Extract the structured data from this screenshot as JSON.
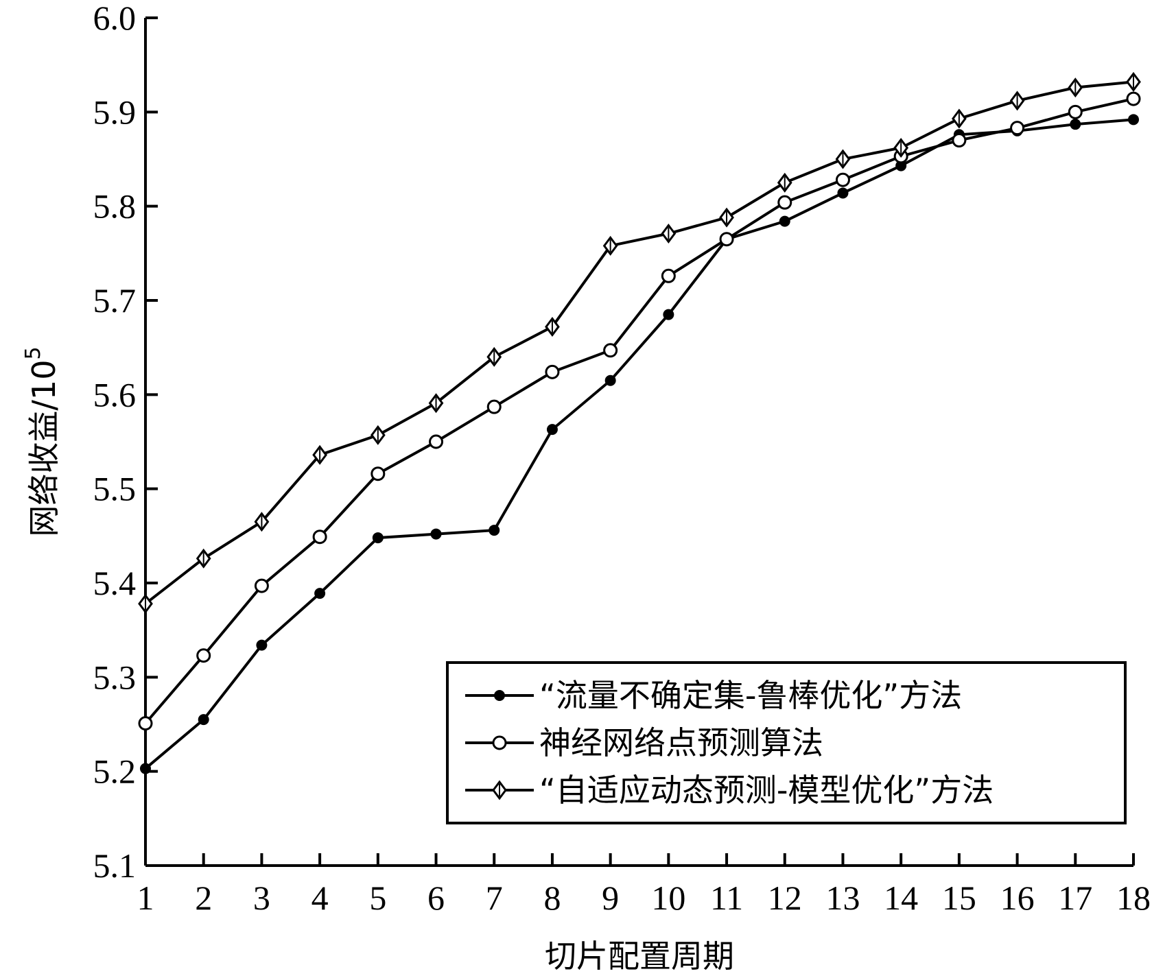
{
  "chart_data": {
    "type": "line",
    "xlabel": "切片配置周期",
    "ylabel": "网络收益/10",
    "ylabel_sup": "5",
    "x": [
      1,
      2,
      3,
      4,
      5,
      6,
      7,
      8,
      9,
      10,
      11,
      12,
      13,
      14,
      15,
      16,
      17,
      18
    ],
    "x_ticks": [
      "1",
      "2",
      "3",
      "4",
      "5",
      "6",
      "7",
      "8",
      "9",
      "10",
      "11",
      "12",
      "13",
      "14",
      "15",
      "16",
      "17",
      "18"
    ],
    "y_ticks": [
      "5.1",
      "5.2",
      "5.3",
      "5.4",
      "5.5",
      "5.6",
      "5.7",
      "5.8",
      "5.9",
      "6.0"
    ],
    "xlim": [
      1,
      18
    ],
    "ylim": [
      5.1,
      6.0
    ],
    "grid": false,
    "legend_position": "bottom-right",
    "series": [
      {
        "name": "“流量不确定集-鲁棒优化”方法",
        "marker": "filled-dot",
        "values": [
          5.203,
          5.255,
          5.334,
          5.389,
          5.448,
          5.452,
          5.456,
          5.563,
          5.615,
          5.685,
          5.765,
          5.784,
          5.814,
          5.843,
          5.876,
          5.88,
          5.887,
          5.892
        ]
      },
      {
        "name": "神经网络点预测算法",
        "marker": "open-circle",
        "values": [
          5.251,
          5.323,
          5.397,
          5.449,
          5.516,
          5.55,
          5.587,
          5.624,
          5.647,
          5.726,
          5.765,
          5.804,
          5.828,
          5.853,
          5.87,
          5.883,
          5.9,
          5.914
        ]
      },
      {
        "name": "“自适应动态预测-模型优化”方法",
        "marker": "open-diamond",
        "values": [
          5.378,
          5.426,
          5.465,
          5.536,
          5.557,
          5.591,
          5.64,
          5.672,
          5.758,
          5.771,
          5.788,
          5.825,
          5.85,
          5.862,
          5.893,
          5.912,
          5.926,
          5.932
        ]
      }
    ]
  }
}
